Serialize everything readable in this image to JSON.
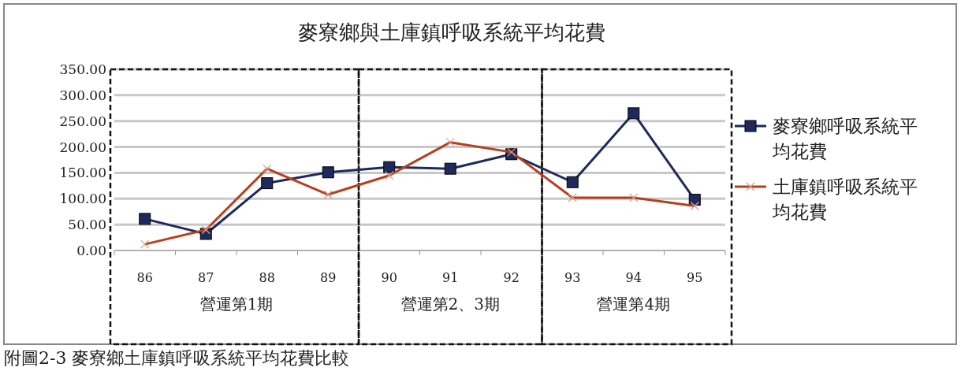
{
  "chart_data": {
    "type": "line",
    "title": "麥寮鄉與土庫鎮呼吸系統平均花費",
    "categories": [
      "86",
      "87",
      "88",
      "89",
      "90",
      "91",
      "92",
      "93",
      "94",
      "95"
    ],
    "series": [
      {
        "name": "麥寮鄉呼吸系統平均花費",
        "color": "#1f2a5c",
        "marker": "square",
        "values": [
          61,
          32,
          130,
          151,
          161,
          158,
          186,
          132,
          265,
          98
        ]
      },
      {
        "name": "土庫鎮呼吸系統平均花費",
        "color": "#b5401e",
        "marker": "cross",
        "values": [
          12,
          40,
          158,
          108,
          145,
          209,
          190,
          102,
          102,
          86
        ]
      }
    ],
    "ylim": [
      0,
      350
    ],
    "yticks": [
      {
        "value": 0,
        "label": "0.00"
      },
      {
        "value": 50,
        "label": "50.00"
      },
      {
        "value": 100,
        "label": "100.00"
      },
      {
        "value": 150,
        "label": "150.00"
      },
      {
        "value": 200,
        "label": "200.00"
      },
      {
        "value": 250,
        "label": "250.00"
      },
      {
        "value": 300,
        "label": "300.00"
      },
      {
        "value": 350,
        "label": "350.00"
      }
    ],
    "grid": "y",
    "legend": "right",
    "line_style": "solid",
    "annotations": [
      "營運第1期",
      "營運第2、3期",
      "營運第4期",
      "附圖2-3 麥寮鄉土庫鎮呼吸系統平均花費比較"
    ]
  }
}
